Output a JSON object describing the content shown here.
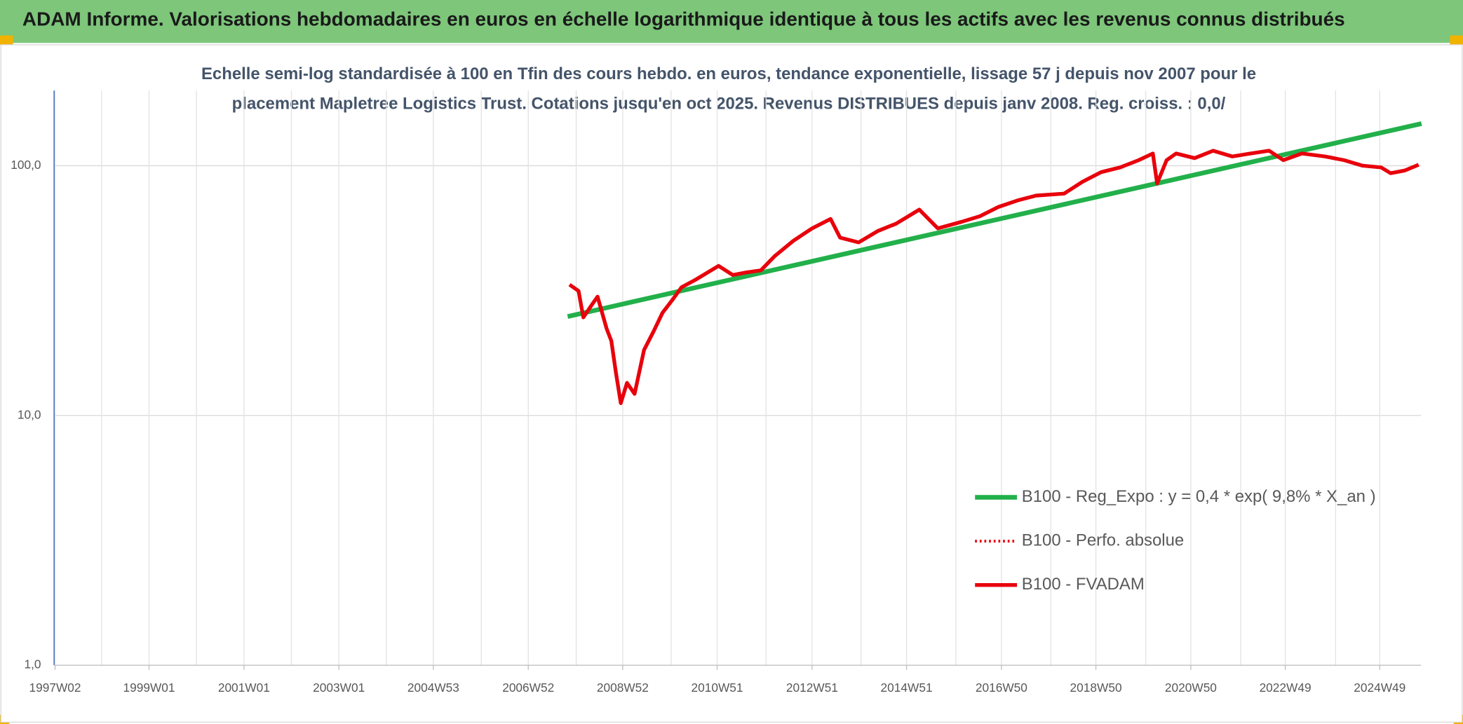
{
  "header": {
    "title": "ADAM Informe. Valorisations hebdomadaires en euros en échelle logarithmique identique à tous les actifs avec les revenus connus distribués"
  },
  "chart_data": {
    "type": "line",
    "subtitle": [
      "Echelle semi-log standardisée à 100 en Tfin des cours hebdo. en euros, tendance exponentielle, lissage 57 j depuis nov 2007 pour le",
      "placement Mapletree Logistics Trust. Cotations jusqu'en oct 2025. Revenus DISTRIBUES depuis janv 2008. Reg. croiss. : 0,0/"
    ],
    "log_y": true,
    "grid": true,
    "legend": "right",
    "ylim": [
      1,
      200
    ],
    "yticks": [
      {
        "value": 1,
        "label": "1,0"
      },
      {
        "value": 10,
        "label": "10,0"
      },
      {
        "value": 100,
        "label": "100,0"
      }
    ],
    "xlim": [
      1997.0,
      2025.8
    ],
    "xticks": [
      {
        "value": 1997.02,
        "label": "1997W02"
      },
      {
        "value": 1999.0,
        "label": "1999W01"
      },
      {
        "value": 2001.0,
        "label": "2001W01"
      },
      {
        "value": 2003.0,
        "label": "2003W01"
      },
      {
        "value": 2004.99,
        "label": "2004W53"
      },
      {
        "value": 2006.99,
        "label": "2006W52"
      },
      {
        "value": 2008.98,
        "label": "2008W52"
      },
      {
        "value": 2010.97,
        "label": "2010W51"
      },
      {
        "value": 2012.97,
        "label": "2012W51"
      },
      {
        "value": 2014.96,
        "label": "2014W51"
      },
      {
        "value": 2016.96,
        "label": "2016W50"
      },
      {
        "value": 2018.95,
        "label": "2018W50"
      },
      {
        "value": 2020.95,
        "label": "2020W50"
      },
      {
        "value": 2022.94,
        "label": "2022W49"
      },
      {
        "value": 2024.93,
        "label": "2024W49"
      }
    ],
    "xminor": [
      1998,
      2000,
      2002,
      2004,
      2006,
      2008,
      2010,
      2012,
      2014,
      2016,
      2018,
      2020,
      2022,
      2024
    ],
    "series": [
      {
        "name": "B100 - Reg_Expo : y = 0,4 * exp( 9,8% *  X_an )",
        "color": "#22b04b",
        "style": "solid",
        "width": 5,
        "x": [
          2007.82,
          2025.81
        ],
        "values": [
          24.9,
          147.4
        ]
      },
      {
        "name": "B100 - Perfo. absolue",
        "color": "#e8000b",
        "style": "dotted",
        "width": 3,
        "x": [],
        "values": []
      },
      {
        "name": "B100 - FVADAM",
        "color": "#e8000b",
        "style": "solid",
        "width": 4,
        "x": [
          2007.86,
          2008.05,
          2008.15,
          2008.35,
          2008.45,
          2008.64,
          2008.74,
          2008.84,
          2008.94,
          2009.07,
          2009.23,
          2009.43,
          2009.63,
          2009.82,
          2010.02,
          2010.22,
          2010.51,
          2011.0,
          2011.3,
          2011.59,
          2011.89,
          2012.18,
          2012.58,
          2012.97,
          2013.36,
          2013.56,
          2013.95,
          2014.35,
          2014.74,
          2015.23,
          2015.62,
          2016.12,
          2016.51,
          2016.9,
          2017.3,
          2017.69,
          2018.28,
          2018.67,
          2019.06,
          2019.46,
          2019.85,
          2020.15,
          2020.24,
          2020.44,
          2020.64,
          2021.03,
          2021.42,
          2021.82,
          2022.21,
          2022.6,
          2022.9,
          2023.29,
          2023.78,
          2024.18,
          2024.57,
          2024.96,
          2025.16,
          2025.46,
          2025.75
        ],
        "values": [
          33.4,
          31.5,
          24.7,
          28.1,
          29.9,
          22.3,
          19.9,
          14.7,
          11.2,
          13.5,
          12.2,
          18.3,
          21.7,
          25.8,
          28.9,
          32.6,
          34.9,
          39.7,
          36.5,
          37.4,
          38.1,
          43.4,
          50.1,
          56.1,
          61.2,
          51.5,
          49.3,
          54.7,
          58.6,
          66.7,
          56.1,
          59.6,
          62.8,
          68.4,
          72.6,
          75.9,
          77.3,
          86.3,
          94.2,
          98.4,
          105.2,
          111.9,
          84.9,
          105.2,
          111.9,
          107.2,
          114.8,
          108.9,
          111.9,
          114.8,
          105.2,
          111.9,
          108.9,
          105.2,
          100,
          98.4,
          93.3,
          95.7,
          100.9
        ]
      }
    ]
  }
}
